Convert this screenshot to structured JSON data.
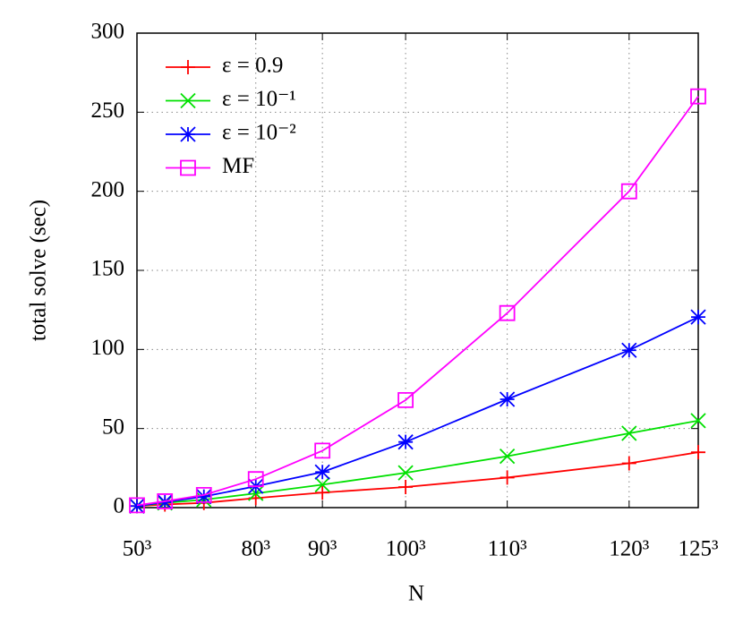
{
  "chart_data": {
    "type": "line",
    "x_label": "N",
    "y_label": "total solve (sec)",
    "x": [
      125000,
      216000,
      343000,
      512000,
      729000,
      1000000,
      1331000,
      1728000,
      1953125
    ],
    "series": [
      {
        "name": "ε = 0.9",
        "color": "#ff0000",
        "marker": "plus",
        "values": [
          1,
          2,
          3,
          6,
          9.5,
          13,
          19,
          28,
          35
        ]
      },
      {
        "name": "ε = 10⁻¹",
        "color": "#00e000",
        "marker": "cross",
        "values": [
          1,
          3,
          5,
          9,
          14.5,
          22,
          32.5,
          47,
          55
        ]
      },
      {
        "name": "ε = 10⁻²",
        "color": "#0000ff",
        "marker": "asterisk",
        "values": [
          1,
          3.5,
          7,
          13.5,
          22.5,
          41.5,
          68.5,
          99.5,
          120.5
        ]
      },
      {
        "name": "MF",
        "color": "#ff00ff",
        "marker": "square",
        "values": [
          1.5,
          4,
          8,
          18,
          36,
          68,
          123,
          200,
          260
        ]
      }
    ],
    "xlim": [
      125000,
      1953125
    ],
    "xticks": [
      {
        "value": 125000,
        "label": "50³"
      },
      {
        "value": 512000,
        "label": "80³"
      },
      {
        "value": 729000,
        "label": "90³"
      },
      {
        "value": 1000000,
        "label": "100³"
      },
      {
        "value": 1331000,
        "label": "110³"
      },
      {
        "value": 1728000,
        "label": "120³"
      },
      {
        "value": 1953125,
        "label": "125³"
      }
    ],
    "ylim": [
      0,
      300
    ],
    "yticks": [
      0,
      50,
      100,
      150,
      200,
      250,
      300
    ],
    "grid": true,
    "legend": "top-left"
  }
}
